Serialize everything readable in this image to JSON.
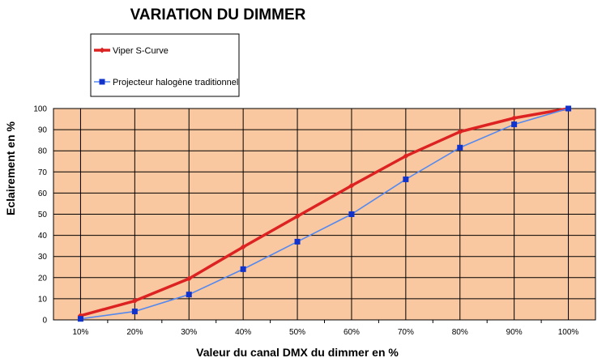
{
  "chart_data": {
    "type": "line",
    "title": "VARIATION DU DIMMER",
    "xlabel": "Valeur du canal DMX du dimmer en %",
    "ylabel": "Eclairement en %",
    "categories": [
      "10%",
      "20%",
      "30%",
      "40%",
      "50%",
      "60%",
      "70%",
      "80%",
      "90%",
      "100%"
    ],
    "ylim": [
      0,
      100
    ],
    "yticks": [
      0,
      10,
      20,
      30,
      40,
      50,
      60,
      70,
      80,
      90,
      100
    ],
    "grid": true,
    "legend_position": "top-left",
    "plot_background": "#f9c8a0",
    "series": [
      {
        "name": "Viper S-Curve",
        "color": "#dd2222",
        "marker": "diamond",
        "values": [
          2,
          9,
          19.5,
          34.5,
          49,
          63.5,
          77.5,
          89,
          95.5,
          100
        ]
      },
      {
        "name": "Projecteur halogène traditionnel",
        "color": "#5588ee",
        "marker_color": "#1133cc",
        "marker": "square",
        "values": [
          0.5,
          4,
          12,
          24,
          37,
          50,
          66.5,
          81.5,
          92.5,
          100
        ]
      }
    ]
  }
}
